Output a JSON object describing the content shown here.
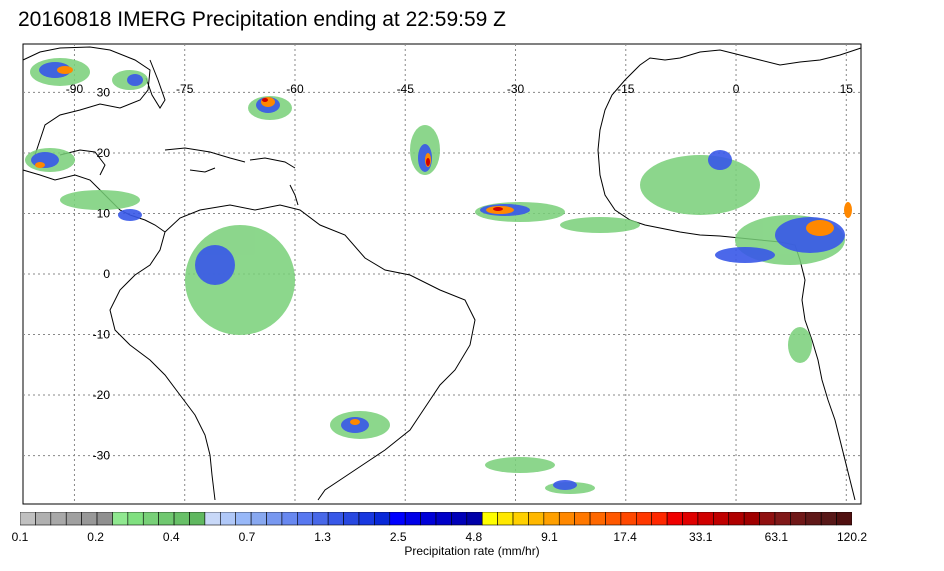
{
  "title": "20160818 IMERG Precipitation ending at 22:59:59 Z",
  "map": {
    "lon_range": [
      -97,
      17
    ],
    "lat_range": [
      -38,
      38
    ],
    "lon_ticks": [
      "-90",
      "-75",
      "-60",
      "-45",
      "-30",
      "-15",
      "0",
      "15"
    ],
    "lat_ticks": [
      "30",
      "20",
      "10",
      "0",
      "-10",
      "-20",
      "-30"
    ],
    "gridlines": "dotted",
    "regions": [
      "South America",
      "Central America",
      "Caribbean",
      "Atlantic Ocean",
      "West Africa"
    ]
  },
  "colorbar": {
    "label": "Precipitation rate (mm/hr)",
    "tick_labels": [
      "0.1",
      "0.2",
      "0.4",
      "0.7",
      "1.3",
      "2.5",
      "4.8",
      "9.1",
      "17.4",
      "33.1",
      "63.1",
      "120.2"
    ],
    "colors": [
      "#c0c0c0",
      "#b0b0b0",
      "#a8a8a8",
      "#a0a0a0",
      "#989898",
      "#909090",
      "#90e890",
      "#80e080",
      "#78d078",
      "#70c870",
      "#68c068",
      "#60b860",
      "#c8d8f8",
      "#b0c8f8",
      "#98b8f8",
      "#88a8f0",
      "#7898f0",
      "#6888f0",
      "#5878f0",
      "#4868e8",
      "#3858e8",
      "#2848e0",
      "#1838e0",
      "#0828d8",
      "#0000ff",
      "#0000e8",
      "#0000d8",
      "#0000c8",
      "#0000b8",
      "#0000a8",
      "#ffff00",
      "#ffe800",
      "#ffd000",
      "#ffb800",
      "#ffa000",
      "#ff8800",
      "#ff7800",
      "#ff6800",
      "#ff5800",
      "#ff4800",
      "#ff3800",
      "#ff2800",
      "#f00000",
      "#e00000",
      "#d00000",
      "#c00000",
      "#b00000",
      "#a00000",
      "#901010",
      "#801818",
      "#701818",
      "#601818",
      "#581818",
      "#501010"
    ]
  }
}
